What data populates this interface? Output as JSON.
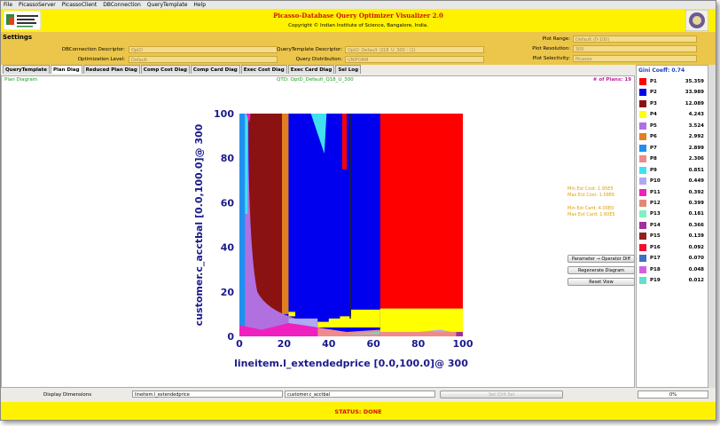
{
  "menu": [
    "File",
    "PicassoServer",
    "PicassoClient",
    "DBConnection",
    "QueryTemplate",
    "Help"
  ],
  "header": {
    "title": "Picasso-Database Query Optimizer Visualizer 2.0",
    "subtitle": "Copyright © Indian Institute of Science, Bangalore, India."
  },
  "settings": {
    "heading": "Settings",
    "fields": [
      {
        "label": "DBConnection Descriptor:",
        "value": "OptD"
      },
      {
        "label": "QueryTemplate Descriptor:",
        "value": "OptD_Default_Q18_U_300 : (1)"
      },
      {
        "label": "Plot Range:",
        "value": "Default (0-100)"
      },
      {
        "label": "Optimization Level:",
        "value": "Default"
      },
      {
        "label": "Query Distribution:",
        "value": "UNIFORM"
      },
      {
        "label": "Plot Resolution:",
        "value": "300"
      },
      {
        "label": "Plot Selectivity:",
        "value": "Picasso"
      }
    ]
  },
  "tabs": [
    "QueryTemplate",
    "Plan Diag",
    "Reduced Plan Diag",
    "Comp Cost Diag",
    "Comp Card Diag",
    "Exec Cost Diag",
    "Exec Card Diag",
    "Sel Log"
  ],
  "diagram": {
    "name": "Plan Diagram",
    "query": "QTD: OptD_Default_Q18_U_300",
    "plans": "# of Plans: 19",
    "x_label": "lineitem.l_extendedprice [0.0,100.0]@ 300",
    "y_label": "customer.c_acctbal [0.0,100.0]@ 300",
    "x_ticks": [
      "0",
      "20",
      "40",
      "60",
      "80",
      "100"
    ],
    "y_ticks": [
      "0",
      "20",
      "40",
      "60",
      "80",
      "100"
    ],
    "stats": [
      "Min Est Cost: 1.95E5",
      "Max Est Cost: 1.58E6",
      "Min Est Card: 4.00E0",
      "Max Est Card: 1.60E5"
    ]
  },
  "buttons": [
    "Parameter → Operator Diff",
    "Regenerate Diagram",
    "Reset View"
  ],
  "legend": {
    "title": "Gini Coeff: 0.74",
    "plans": [
      {
        "name": "P1",
        "value": "35.359",
        "color": "#ff0000"
      },
      {
        "name": "P2",
        "value": "33.989",
        "color": "#0000ee"
      },
      {
        "name": "P3",
        "value": "12.089",
        "color": "#8b1212"
      },
      {
        "name": "P4",
        "value": "4.243",
        "color": "#ffff00"
      },
      {
        "name": "P5",
        "value": "3.524",
        "color": "#b070e0"
      },
      {
        "name": "P6",
        "value": "2.992",
        "color": "#e08020"
      },
      {
        "name": "P7",
        "value": "2.899",
        "color": "#2090f0"
      },
      {
        "name": "P8",
        "value": "2.306",
        "color": "#f08a8a"
      },
      {
        "name": "P9",
        "value": "0.851",
        "color": "#40e0f0"
      },
      {
        "name": "P10",
        "value": "0.449",
        "color": "#b0a8f0"
      },
      {
        "name": "P11",
        "value": "0.392",
        "color": "#f020c0"
      },
      {
        "name": "P12",
        "value": "0.399",
        "color": "#e08878"
      },
      {
        "name": "P13",
        "value": "0.181",
        "color": "#80f0c0"
      },
      {
        "name": "P14",
        "value": "0.366",
        "color": "#a030a0"
      },
      {
        "name": "P15",
        "value": "0.139",
        "color": "#902020"
      },
      {
        "name": "P16",
        "value": "0.092",
        "color": "#f01030"
      },
      {
        "name": "P17",
        "value": "0.070",
        "color": "#4070c0"
      },
      {
        "name": "P18",
        "value": "0.048",
        "color": "#d060e0"
      },
      {
        "name": "P19",
        "value": "0.012",
        "color": "#60e0d0"
      }
    ]
  },
  "bottom": {
    "label": "Display Dimensions",
    "x_dim": "lineitem.l_extendedprice",
    "y_dim": "customer.c_acctbal",
    "button": "Set Chlt Sel",
    "progress": "0%"
  },
  "status": "STATUS: DONE"
}
